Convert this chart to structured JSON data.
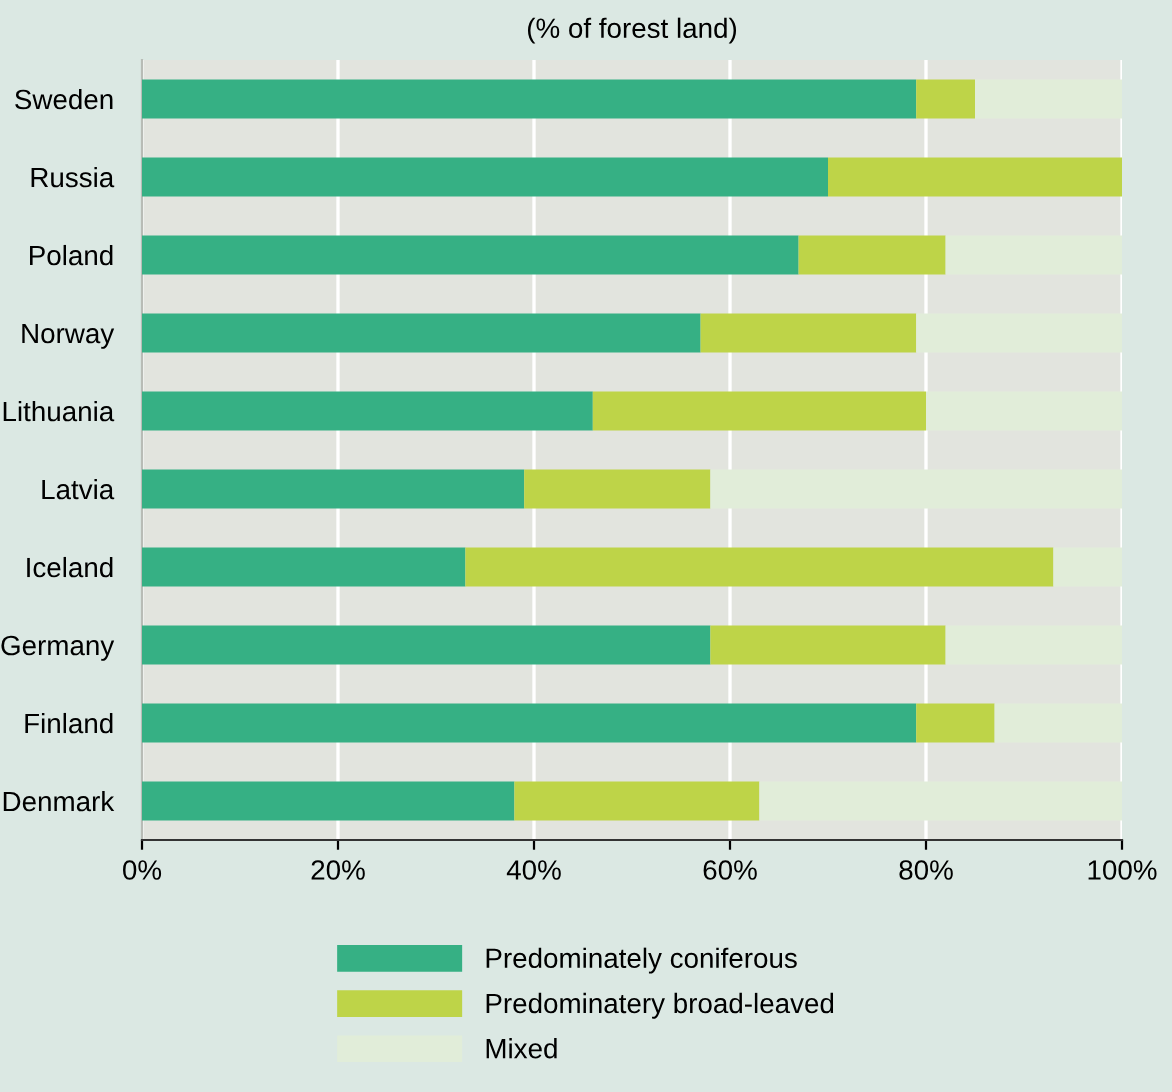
{
  "chart_data": {
    "type": "bar",
    "orientation": "horizontal",
    "stacked": true,
    "title": "(% of forest land)",
    "categories": [
      "Sweden",
      "Russia",
      "Poland",
      "Norway",
      "Lithuania",
      "Latvia",
      "Iceland",
      "Germany",
      "Finland",
      "Denmark"
    ],
    "series": [
      {
        "name": "Predominately coniferous",
        "color": "#36b084",
        "values": [
          79,
          70,
          67,
          57,
          46,
          39,
          33,
          58,
          79,
          38
        ]
      },
      {
        "name": "Predominatery broad-leaved",
        "color": "#bed448",
        "values": [
          6,
          30,
          15,
          22,
          34,
          19,
          60,
          24,
          8,
          25
        ]
      },
      {
        "name": "Mixed",
        "color": "#e1edd9",
        "values": [
          15,
          0,
          18,
          21,
          20,
          42,
          7,
          18,
          13,
          37
        ]
      }
    ],
    "xlim": [
      0,
      100
    ],
    "xticks": [
      {
        "value": 0,
        "label": "0%"
      },
      {
        "value": 20,
        "label": "20%"
      },
      {
        "value": 40,
        "label": "40%"
      },
      {
        "value": 60,
        "label": "60%"
      },
      {
        "value": 80,
        "label": "80%"
      },
      {
        "value": 100,
        "label": "100%"
      }
    ],
    "grid": "x",
    "legend": "bottom"
  }
}
